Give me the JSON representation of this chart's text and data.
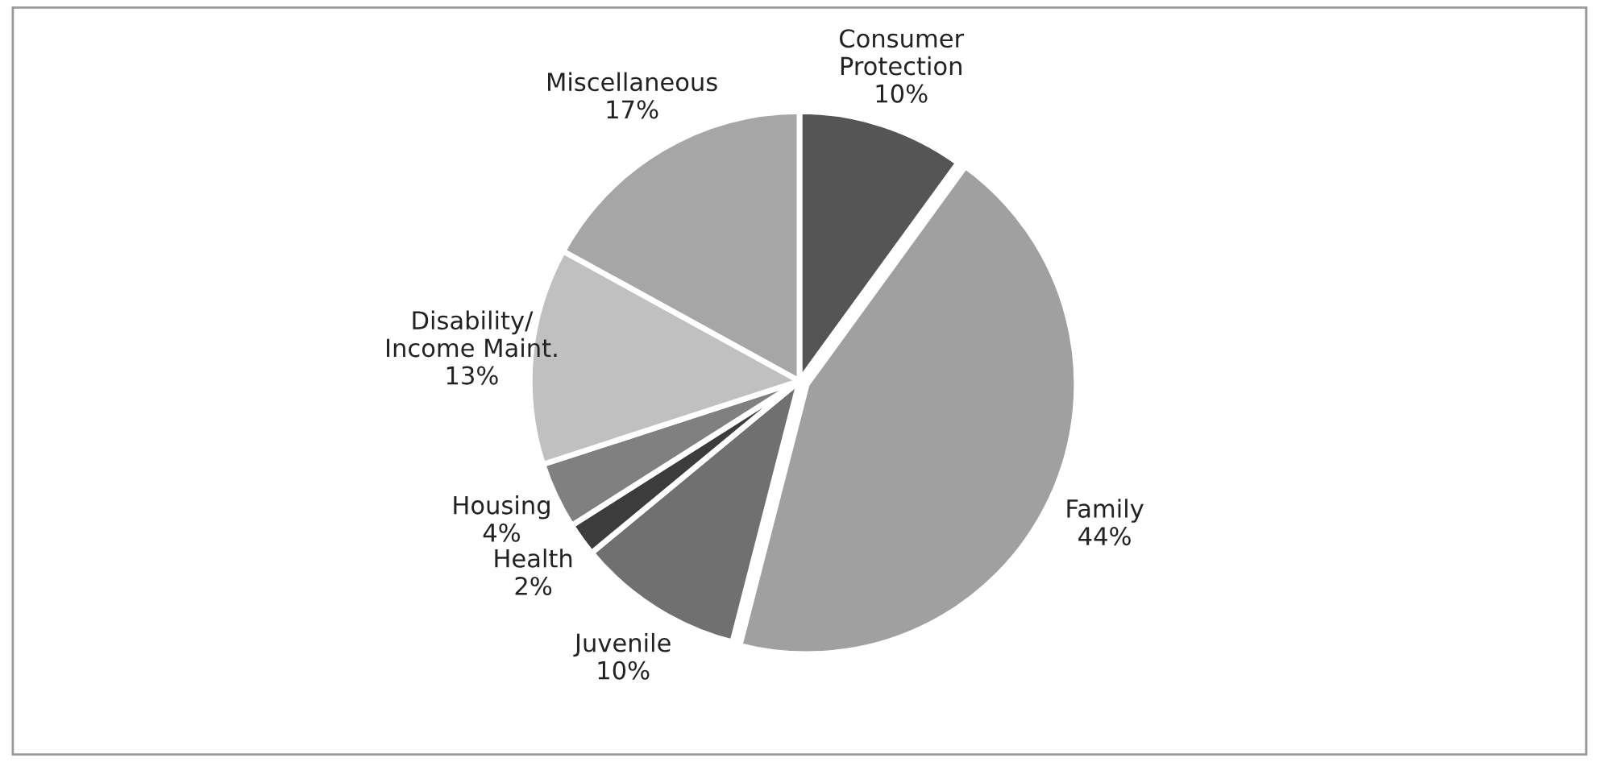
{
  "chart_data": {
    "type": "pie",
    "categories": [
      "Consumer\nProtection",
      "Family",
      "Juvenile",
      "Health",
      "Housing",
      "Disability/\nIncome Maint.",
      "Miscellaneous"
    ],
    "values": [
      10,
      44,
      10,
      2,
      4,
      13,
      17
    ],
    "value_labels": [
      "10%",
      "44%",
      "10%",
      "2%",
      "4%",
      "13%",
      "17%"
    ],
    "colors": [
      "#555555",
      "#a0a0a0",
      "#707070",
      "#3c3c3c",
      "#808080",
      "#c0c0c0",
      "#a6a6a6"
    ],
    "legend": false
  }
}
